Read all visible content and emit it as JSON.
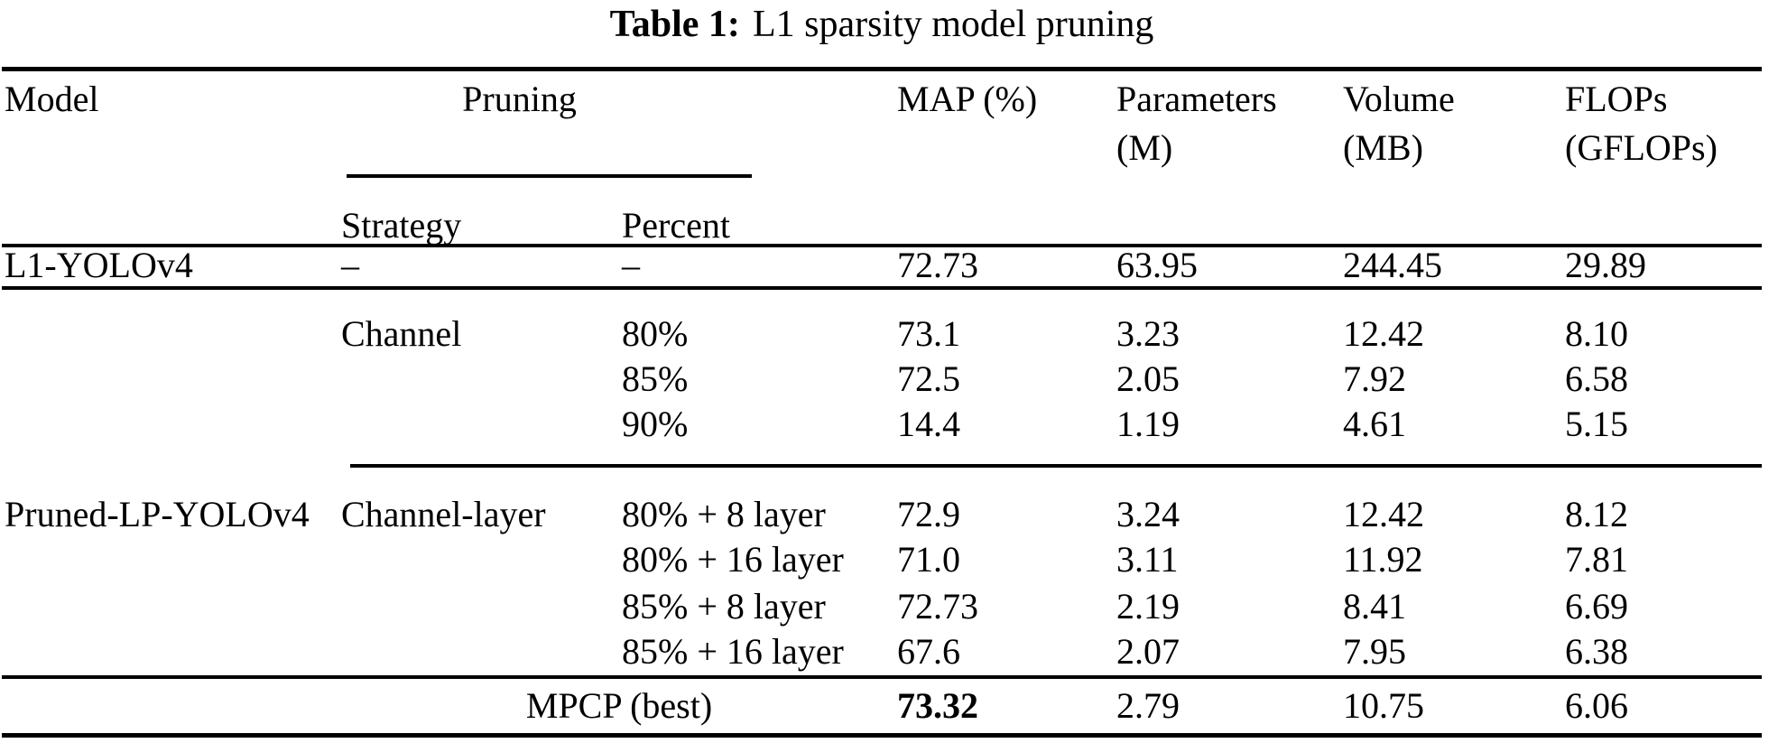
{
  "colors": {
    "text": "#000000",
    "background": "#ffffff"
  },
  "title": {
    "label": "Table 1:",
    "text": "L1 sparsity model pruning"
  },
  "table": {
    "headers": {
      "model": "Model",
      "pruning": "Pruning",
      "strategy": "Strategy",
      "percent": "Percent",
      "map": "MAP (%)",
      "parameters_line1": "Parameters",
      "parameters_line2": "(M)",
      "volume_line1": "Volume",
      "volume_line2": "(MB)",
      "flops_line1": "FLOPs",
      "flops_line2": "(GFLOPs)"
    },
    "rows": [
      {
        "model": "L1-YOLOv4",
        "strategy": "–",
        "percent": "–",
        "map": "72.73",
        "parameters": "63.95",
        "volume": "244.45",
        "flops": "29.89"
      },
      {
        "strategy": "Channel",
        "percent": "80%",
        "map": "73.1",
        "parameters": "3.23",
        "volume": "12.42",
        "flops": "8.10"
      },
      {
        "percent": "85%",
        "map": "72.5",
        "parameters": "2.05",
        "volume": "7.92",
        "flops": "6.58"
      },
      {
        "percent": "90%",
        "map": "14.4",
        "parameters": "1.19",
        "volume": "4.61",
        "flops": "5.15"
      },
      {
        "model": "Pruned-LP-YOLOv4",
        "strategy": "Channel-layer",
        "percent": "80% + 8 layer",
        "map": "72.9",
        "parameters": "3.24",
        "volume": "12.42",
        "flops": "8.12"
      },
      {
        "percent": "80% + 16 layer",
        "map": "71.0",
        "parameters": "3.11",
        "volume": "11.92",
        "flops": "7.81"
      },
      {
        "percent": "85% + 8 layer",
        "map": "72.73",
        "parameters": "2.19",
        "volume": "8.41",
        "flops": "6.69"
      },
      {
        "percent": "85% + 16 layer",
        "map": "67.6",
        "parameters": "2.07",
        "volume": "7.95",
        "flops": "6.38"
      },
      {
        "label": "MPCP (best)",
        "map": "73.32",
        "parameters": "2.79",
        "volume": "10.75",
        "flops": "6.06"
      }
    ]
  }
}
